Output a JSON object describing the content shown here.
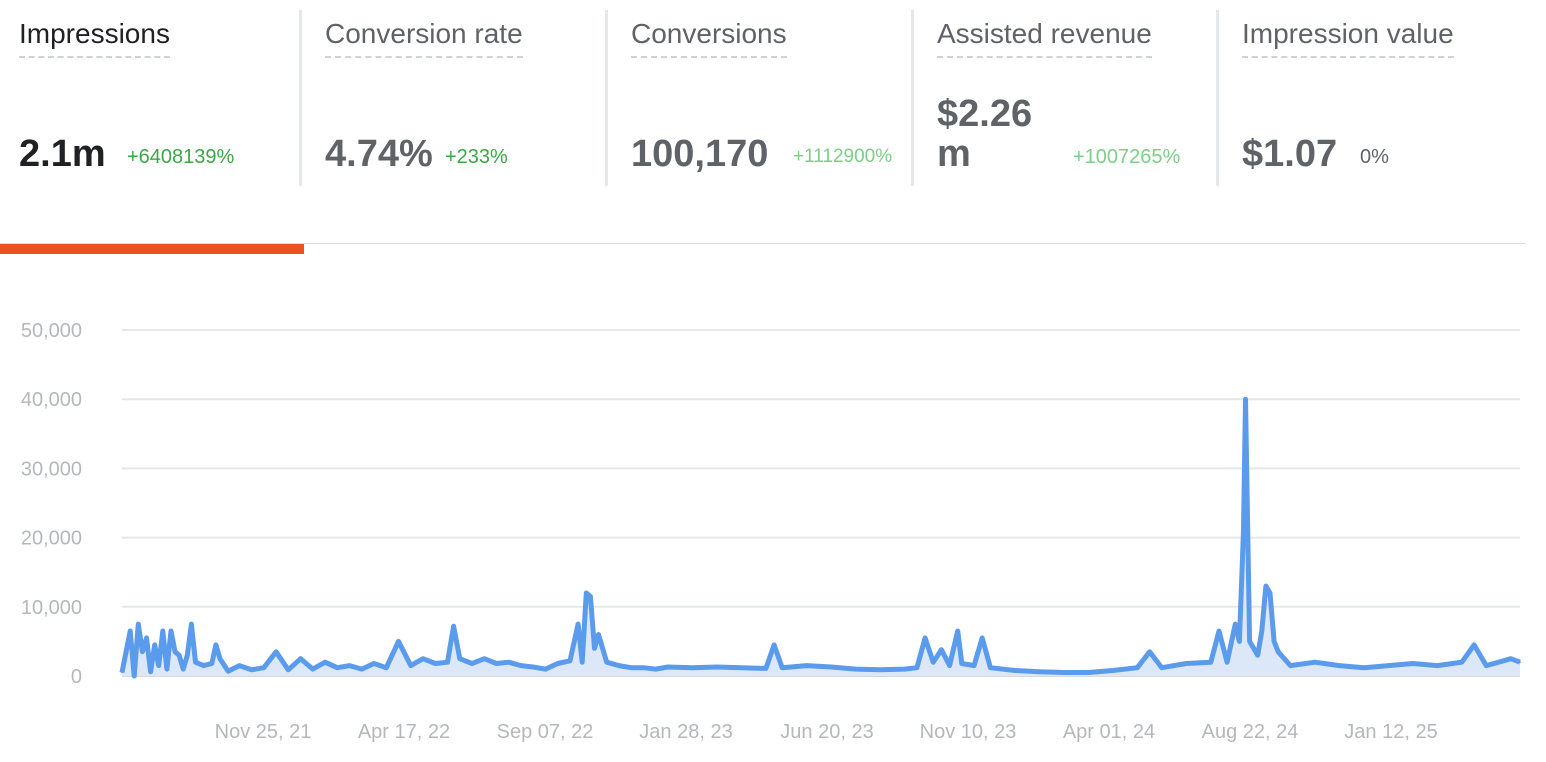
{
  "metrics": [
    {
      "label": "Impressions",
      "value": "2.1m",
      "delta": "+6408139%",
      "delta_color": "#3aa845",
      "active": true
    },
    {
      "label": "Conversion rate",
      "value": "4.74%",
      "delta": "+233%",
      "delta_color": "#3aa845",
      "active": false
    },
    {
      "label": "Conversions",
      "value": "100,170",
      "delta": "+1112900%",
      "delta_color": "#7ccf86",
      "active": false
    },
    {
      "label": "Assisted revenue",
      "value_line1": "$2.26",
      "value_line2": "m",
      "delta": "+1007265%",
      "delta_color": "#7ccf86",
      "active": false
    },
    {
      "label": "Impression value",
      "value": "$1.07",
      "delta": "0%",
      "delta_color": "#5f6368",
      "active": false
    }
  ],
  "colors": {
    "accent": "#e8531f",
    "series": "#5b9bec",
    "series_fill": "#dce8f8",
    "grid": "#e6e7e8"
  },
  "chart_data": {
    "type": "area",
    "series_name": "Impressions",
    "y_ticks": [
      "50,000",
      "40,000",
      "30,000",
      "20,000",
      "10,000",
      "0"
    ],
    "ylim": [
      0,
      50000
    ],
    "x_ticks": [
      "Nov 25, 21",
      "Apr 17, 22",
      "Sep 07, 22",
      "Jan 28, 23",
      "Jun 20, 23",
      "Nov 10, 23",
      "Apr 01, 24",
      "Aug 22, 24",
      "Jan 12, 25"
    ],
    "x_start": "2021-08-17",
    "x_end": "2025-05-18",
    "grid": true,
    "legend": "none",
    "points": [
      [
        "2021-08-17",
        500
      ],
      [
        "2021-08-25",
        6500
      ],
      [
        "2021-08-29",
        0
      ],
      [
        "2021-09-02",
        7500
      ],
      [
        "2021-09-06",
        3500
      ],
      [
        "2021-09-10",
        5500
      ],
      [
        "2021-09-14",
        600
      ],
      [
        "2021-09-18",
        4500
      ],
      [
        "2021-09-22",
        1500
      ],
      [
        "2021-09-26",
        6500
      ],
      [
        "2021-09-30",
        1000
      ],
      [
        "2021-10-04",
        6500
      ],
      [
        "2021-10-08",
        3500
      ],
      [
        "2021-10-12",
        3000
      ],
      [
        "2021-10-16",
        1000
      ],
      [
        "2021-10-20",
        3000
      ],
      [
        "2021-10-24",
        7500
      ],
      [
        "2021-10-28",
        2000
      ],
      [
        "2021-11-05",
        1500
      ],
      [
        "2021-11-13",
        1800
      ],
      [
        "2021-11-17",
        4500
      ],
      [
        "2021-11-21",
        2500
      ],
      [
        "2021-11-29",
        700
      ],
      [
        "2021-12-10",
        1500
      ],
      [
        "2021-12-22",
        900
      ],
      [
        "2022-01-03",
        1200
      ],
      [
        "2022-01-15",
        3500
      ],
      [
        "2022-01-27",
        900
      ],
      [
        "2022-02-08",
        2500
      ],
      [
        "2022-02-20",
        1000
      ],
      [
        "2022-03-04",
        2000
      ],
      [
        "2022-03-16",
        1200
      ],
      [
        "2022-03-28",
        1500
      ],
      [
        "2022-04-09",
        1000
      ],
      [
        "2022-04-21",
        1800
      ],
      [
        "2022-05-03",
        1200
      ],
      [
        "2022-05-15",
        5000
      ],
      [
        "2022-05-27",
        1500
      ],
      [
        "2022-06-08",
        2500
      ],
      [
        "2022-06-20",
        1800
      ],
      [
        "2022-07-02",
        2000
      ],
      [
        "2022-07-08",
        7200
      ],
      [
        "2022-07-14",
        2500
      ],
      [
        "2022-07-26",
        1800
      ],
      [
        "2022-08-07",
        2500
      ],
      [
        "2022-08-19",
        1800
      ],
      [
        "2022-08-31",
        2000
      ],
      [
        "2022-09-12",
        1500
      ],
      [
        "2022-09-24",
        1300
      ],
      [
        "2022-10-06",
        1000
      ],
      [
        "2022-10-18",
        1800
      ],
      [
        "2022-10-30",
        2200
      ],
      [
        "2022-11-07",
        7500
      ],
      [
        "2022-11-11",
        2000
      ],
      [
        "2022-11-15",
        12000
      ],
      [
        "2022-11-19",
        11500
      ],
      [
        "2022-11-23",
        4000
      ],
      [
        "2022-11-27",
        6000
      ],
      [
        "2022-12-05",
        2000
      ],
      [
        "2022-12-17",
        1500
      ],
      [
        "2022-12-29",
        1200
      ],
      [
        "2023-01-10",
        1200
      ],
      [
        "2023-01-22",
        1000
      ],
      [
        "2023-02-03",
        1300
      ],
      [
        "2023-02-27",
        1200
      ],
      [
        "2023-03-23",
        1300
      ],
      [
        "2023-04-16",
        1200
      ],
      [
        "2023-05-10",
        1100
      ],
      [
        "2023-05-18",
        4500
      ],
      [
        "2023-05-26",
        1200
      ],
      [
        "2023-06-19",
        1500
      ],
      [
        "2023-07-13",
        1300
      ],
      [
        "2023-08-06",
        1000
      ],
      [
        "2023-08-30",
        900
      ],
      [
        "2023-09-23",
        1000
      ],
      [
        "2023-10-05",
        1200
      ],
      [
        "2023-10-13",
        5500
      ],
      [
        "2023-10-21",
        2000
      ],
      [
        "2023-10-29",
        3800
      ],
      [
        "2023-11-06",
        1500
      ],
      [
        "2023-11-14",
        6500
      ],
      [
        "2023-11-18",
        1800
      ],
      [
        "2023-11-30",
        1500
      ],
      [
        "2023-12-08",
        5500
      ],
      [
        "2023-12-16",
        1200
      ],
      [
        "2024-01-09",
        800
      ],
      [
        "2024-02-02",
        600
      ],
      [
        "2024-02-26",
        500
      ],
      [
        "2024-03-21",
        500
      ],
      [
        "2024-04-14",
        800
      ],
      [
        "2024-05-08",
        1200
      ],
      [
        "2024-05-20",
        3500
      ],
      [
        "2024-06-01",
        1200
      ],
      [
        "2024-06-25",
        1800
      ],
      [
        "2024-07-19",
        2000
      ],
      [
        "2024-07-27",
        6500
      ],
      [
        "2024-08-04",
        2000
      ],
      [
        "2024-08-12",
        7500
      ],
      [
        "2024-08-16",
        5000
      ],
      [
        "2024-08-20",
        21000
      ],
      [
        "2024-08-22",
        40000
      ],
      [
        "2024-08-26",
        5000
      ],
      [
        "2024-09-03",
        3000
      ],
      [
        "2024-09-07",
        6500
      ],
      [
        "2024-09-11",
        13000
      ],
      [
        "2024-09-15",
        12000
      ],
      [
        "2024-09-19",
        5000
      ],
      [
        "2024-09-23",
        3500
      ],
      [
        "2024-10-05",
        1500
      ],
      [
        "2024-10-29",
        2000
      ],
      [
        "2024-11-22",
        1500
      ],
      [
        "2024-12-16",
        1200
      ],
      [
        "2025-01-09",
        1500
      ],
      [
        "2025-02-02",
        1800
      ],
      [
        "2025-02-26",
        1500
      ],
      [
        "2025-03-22",
        2000
      ],
      [
        "2025-04-03",
        4500
      ],
      [
        "2025-04-15",
        1500
      ],
      [
        "2025-04-27",
        2000
      ],
      [
        "2025-05-09",
        2500
      ],
      [
        "2025-05-18",
        2000
      ]
    ]
  }
}
